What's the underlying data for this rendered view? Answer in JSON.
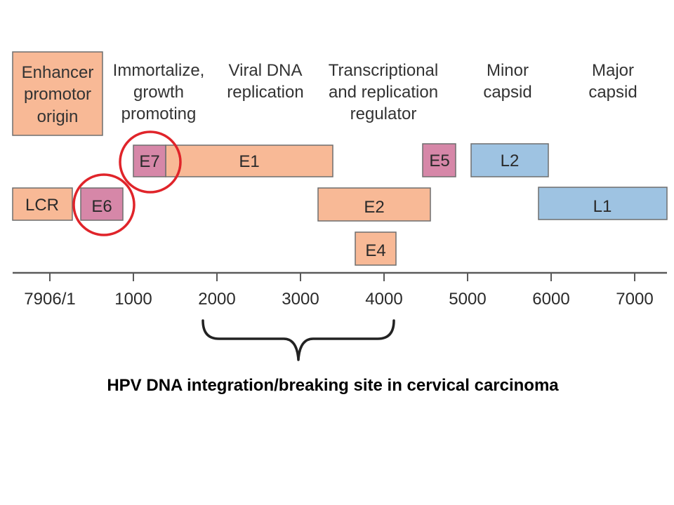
{
  "colors": {
    "early_fill": "#F8B996",
    "early_stroke": "#6e6e6e",
    "oncogene_fill": "#D687A8",
    "late_fill": "#9EC3E2",
    "highlight_circle": "#E0242A",
    "axis": "#5a5a5a",
    "brace": "#222222"
  },
  "functions": {
    "enhancer": [
      "Enhancer",
      "promotor",
      "origin"
    ],
    "immortalize": [
      "Immortalize,",
      "growth",
      "promoting"
    ],
    "viral_dna": [
      "Viral DNA",
      "replication"
    ],
    "transcriptional": [
      "Transcriptional",
      "and replication",
      "regulator"
    ],
    "minor": [
      "Minor",
      "capsid"
    ],
    "major": [
      "Major",
      "capsid"
    ]
  },
  "genes": {
    "e7": "E7",
    "e1": "E1",
    "e5": "E5",
    "l2": "L2",
    "lcr": "LCR",
    "e6": "E6",
    "e2": "E2",
    "l1": "L1",
    "e4": "E4"
  },
  "axis": {
    "ticks": [
      "7906/1",
      "1000",
      "2000",
      "3000",
      "4000",
      "5000",
      "6000",
      "7000"
    ]
  },
  "highlighted_genes": [
    "E7",
    "E6"
  ],
  "caption": "HPV DNA integration/breaking site in cervical carcinoma"
}
